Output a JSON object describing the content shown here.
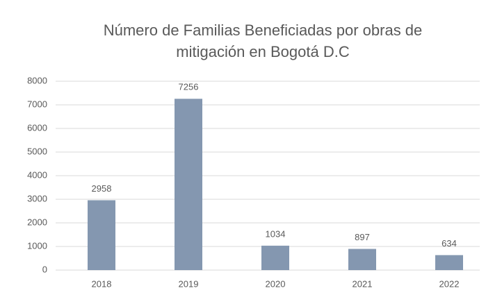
{
  "chart_data": {
    "type": "bar",
    "title": [
      "Número de Familias Beneficiadas por obras de",
      "mitigación en Bogotá D.C"
    ],
    "categories": [
      "2018",
      "2019",
      "2020",
      "2021",
      "2022"
    ],
    "values": [
      2958,
      7256,
      1034,
      897,
      634
    ],
    "color": "#8497b0",
    "ylim": [
      0,
      8000
    ],
    "yticks": [
      0,
      1000,
      2000,
      3000,
      4000,
      5000,
      6000,
      7000,
      8000
    ],
    "grid": true,
    "data_labels": true
  }
}
